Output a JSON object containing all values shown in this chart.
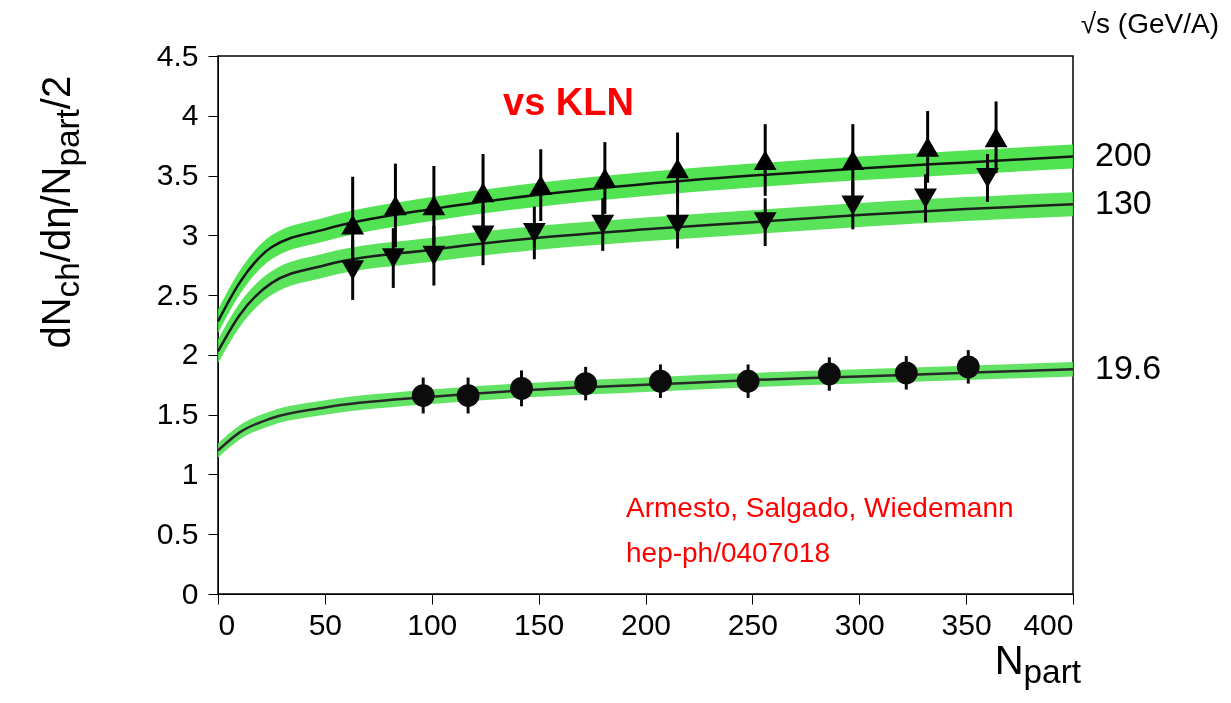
{
  "chart_data": {
    "type": "scatter",
    "title": "vs KLN",
    "xlabel": "N$_{part}$",
    "ylabel": "dN$_{ch}$/dη/N$_{part}$/2",
    "legend_title": "√s (GeV/A)",
    "xlim": [
      0,
      400
    ],
    "xticks": [
      0,
      50,
      100,
      150,
      200,
      250,
      300,
      350,
      400
    ],
    "ylim": [
      0,
      4.5
    ],
    "yticks": [
      0,
      0.5,
      1,
      1.5,
      2,
      2.5,
      3,
      3.5,
      4,
      4.5
    ],
    "annotations": [
      "Armesto, Salgado, Wiedemann",
      "hep-ph/0407018"
    ],
    "series": [
      {
        "type": "line",
        "name": "200",
        "color": "#141414",
        "x": [
          0,
          10,
          25,
          50,
          100,
          150,
          200,
          250,
          300,
          350,
          400
        ],
        "values": [
          2.28,
          2.6,
          2.9,
          3.05,
          3.22,
          3.34,
          3.43,
          3.5,
          3.56,
          3.61,
          3.66
        ],
        "lower": [
          2.18,
          2.5,
          2.8,
          2.95,
          3.12,
          3.24,
          3.33,
          3.4,
          3.46,
          3.51,
          3.56
        ],
        "upper": [
          2.38,
          2.7,
          3.0,
          3.15,
          3.32,
          3.44,
          3.53,
          3.6,
          3.66,
          3.71,
          3.76
        ]
      },
      {
        "type": "line",
        "name": "130",
        "color": "#1e1e1e",
        "x": [
          0,
          10,
          25,
          50,
          100,
          150,
          200,
          250,
          300,
          350,
          400
        ],
        "values": [
          2.03,
          2.33,
          2.6,
          2.75,
          2.88,
          2.98,
          3.05,
          3.11,
          3.17,
          3.22,
          3.26
        ],
        "lower": [
          1.93,
          2.23,
          2.5,
          2.65,
          2.78,
          2.88,
          2.95,
          3.01,
          3.07,
          3.12,
          3.16
        ],
        "upper": [
          2.13,
          2.43,
          2.7,
          2.85,
          2.98,
          3.08,
          3.15,
          3.21,
          3.27,
          3.32,
          3.36
        ]
      },
      {
        "type": "line",
        "name": "19.6",
        "color": "#282828",
        "x": [
          0,
          10,
          25,
          50,
          100,
          150,
          200,
          250,
          300,
          350,
          400
        ],
        "values": [
          1.2,
          1.35,
          1.47,
          1.56,
          1.65,
          1.71,
          1.75,
          1.79,
          1.82,
          1.85,
          1.88
        ],
        "lower": [
          1.14,
          1.29,
          1.41,
          1.5,
          1.59,
          1.65,
          1.69,
          1.73,
          1.76,
          1.79,
          1.82
        ],
        "upper": [
          1.26,
          1.41,
          1.53,
          1.62,
          1.71,
          1.77,
          1.81,
          1.85,
          1.88,
          1.91,
          1.94
        ]
      },
      {
        "color": "#000000",
        "marker": "triangle",
        "x": [
          63,
          83,
          101,
          124,
          151,
          181,
          215,
          256,
          297,
          332,
          364
        ],
        "values": [
          3.09,
          3.25,
          3.25,
          3.36,
          3.42,
          3.48,
          3.56,
          3.63,
          3.63,
          3.74,
          3.82
        ],
        "errors": [
          0.4,
          0.35,
          0.33,
          0.32,
          0.3,
          0.3,
          0.3,
          0.3,
          0.3,
          0.3,
          0.3
        ]
      },
      {
        "color": "#060606",
        "marker": "triangle-down",
        "x": [
          63,
          82,
          101,
          124,
          148,
          180,
          215,
          256,
          297,
          331,
          360
        ],
        "values": [
          2.71,
          2.81,
          2.83,
          3.0,
          3.02,
          3.09,
          3.09,
          3.11,
          3.25,
          3.31,
          3.48
        ],
        "errors": [
          0.25,
          0.25,
          0.25,
          0.25,
          0.22,
          0.22,
          0.2,
          0.2,
          0.2,
          0.2,
          0.2
        ]
      },
      {
        "color": "#0c0c0c",
        "marker": "circle",
        "x": [
          96,
          117,
          142,
          172,
          207,
          248,
          286,
          322,
          351
        ],
        "values": [
          1.66,
          1.66,
          1.72,
          1.76,
          1.78,
          1.78,
          1.84,
          1.85,
          1.9
        ],
        "errors": [
          0.15,
          0.15,
          0.15,
          0.14,
          0.14,
          0.14,
          0.14,
          0.14,
          0.14
        ]
      }
    ]
  }
}
